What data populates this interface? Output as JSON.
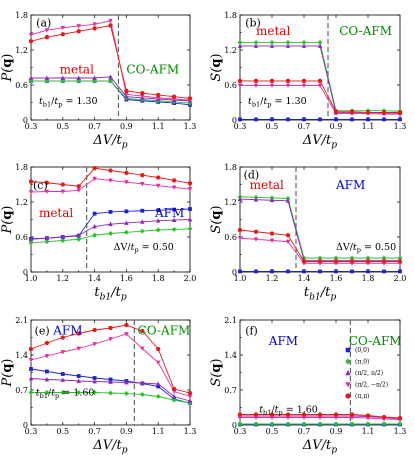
{
  "colors": {
    "q00": "#1a24d6",
    "qpi0": "#27c22a",
    "qpi2": "#8a2bb8",
    "qpi2m": "#e0309f",
    "qpipi": "#e81818",
    "metal_text": "#e00000",
    "afm_text": "#0000dd",
    "coafm_text": "#008800"
  },
  "legend": {
    "items": [
      {
        "key": "q00",
        "label": "(0,0)",
        "marker": "square"
      },
      {
        "key": "qpi0",
        "label": "(π,0)",
        "marker": "diamond"
      },
      {
        "key": "qpi2",
        "label": "(π/2, π/2)",
        "marker": "triangle-up"
      },
      {
        "key": "qpi2m",
        "label": "(π/2, −π/2)",
        "marker": "triangle-down"
      },
      {
        "key": "qpipi",
        "label": "(π,π)",
        "marker": "circle"
      }
    ]
  },
  "panels": {
    "a": {
      "tag": "(a)",
      "ylabel": "P(q)",
      "xlabel": "ΔV/tp",
      "annotation": "tb1/tp = 1.30",
      "regions": [
        {
          "text": "metal",
          "color": "metal_text"
        },
        {
          "text": "CO-AFM",
          "color": "coafm_text"
        }
      ]
    },
    "b": {
      "tag": "(b)",
      "ylabel": "S(q)",
      "xlabel": "ΔV/tp",
      "annotation": "tb1/tp = 1.30",
      "regions": [
        {
          "text": "metal",
          "color": "metal_text"
        },
        {
          "text": "CO-AFM",
          "color": "coafm_text"
        }
      ]
    },
    "c": {
      "tag": "(c)",
      "ylabel": "P(q)",
      "xlabel": "tb1/tp",
      "annotation": "ΔV/tp = 0.50",
      "regions": [
        {
          "text": "metal",
          "color": "metal_text"
        },
        {
          "text": "AFM",
          "color": "afm_text"
        }
      ]
    },
    "d": {
      "tag": "(d)",
      "ylabel": "S(q)",
      "xlabel": "tb1/tp",
      "annotation": "ΔV/tp = 0.50",
      "regions": [
        {
          "text": "metal",
          "color": "metal_text"
        },
        {
          "text": "AFM",
          "color": "afm_text"
        }
      ]
    },
    "e": {
      "tag": "(e)",
      "ylabel": "P(q)",
      "xlabel": "ΔV/tp",
      "annotation": "tb1/tp = 1.60",
      "regions": [
        {
          "text": "AFM",
          "color": "afm_text"
        },
        {
          "text": "CO-AFM",
          "color": "coafm_text"
        }
      ]
    },
    "f": {
      "tag": "(f)",
      "ylabel": "S(q)",
      "xlabel": "ΔV/tp",
      "annotation": "tb1/tp = 1.60",
      "regions": [
        {
          "text": "AFM",
          "color": "afm_text"
        },
        {
          "text": "CO-AFM",
          "color": "coafm_text"
        }
      ]
    }
  },
  "chart_data": [
    {
      "id": "a",
      "type": "line",
      "x": [
        0.3,
        0.4,
        0.5,
        0.6,
        0.7,
        0.8,
        0.9,
        1.0,
        1.1,
        1.2,
        1.3
      ],
      "xlim": [
        0.3,
        1.3
      ],
      "ylim": [
        0,
        1.8
      ],
      "xticks": [
        0.3,
        0.5,
        0.7,
        0.9,
        1.1,
        1.3
      ],
      "yticks": [
        0,
        0.6,
        1.2,
        1.8
      ],
      "vline": 0.85,
      "series": [
        {
          "key": "q00",
          "values": [
            0.67,
            0.67,
            0.67,
            0.67,
            0.67,
            0.67,
            0.35,
            0.33,
            0.31,
            0.29,
            0.26
          ]
        },
        {
          "key": "qpi0",
          "values": [
            0.67,
            0.67,
            0.67,
            0.67,
            0.67,
            0.67,
            0.37,
            0.35,
            0.33,
            0.31,
            0.29
          ]
        },
        {
          "key": "qpi2",
          "values": [
            0.72,
            0.72,
            0.72,
            0.72,
            0.72,
            0.74,
            0.4,
            0.38,
            0.36,
            0.34,
            0.33
          ]
        },
        {
          "key": "qpi2m",
          "values": [
            1.46,
            1.54,
            1.58,
            1.61,
            1.64,
            1.7,
            0.44,
            0.41,
            0.38,
            0.36,
            0.34
          ]
        },
        {
          "key": "qpipi",
          "values": [
            1.35,
            1.42,
            1.47,
            1.52,
            1.57,
            1.62,
            0.5,
            0.46,
            0.43,
            0.4,
            0.37
          ]
        }
      ]
    },
    {
      "id": "b",
      "type": "line",
      "x": [
        0.3,
        0.4,
        0.5,
        0.6,
        0.7,
        0.8,
        0.9,
        1.0,
        1.1,
        1.2,
        1.3
      ],
      "xlim": [
        0.3,
        1.3
      ],
      "ylim": [
        0,
        1.8
      ],
      "xticks": [
        0.3,
        0.5,
        0.7,
        0.9,
        1.1,
        1.3
      ],
      "yticks": [
        0,
        0.6,
        1.2,
        1.8
      ],
      "vline": 0.85,
      "series": [
        {
          "key": "q00",
          "values": [
            0.01,
            0.01,
            0.01,
            0.01,
            0.01,
            0.01,
            0.01,
            0.01,
            0.01,
            0.01,
            0.01
          ]
        },
        {
          "key": "qpi0",
          "values": [
            1.33,
            1.33,
            1.33,
            1.33,
            1.33,
            1.33,
            0.16,
            0.16,
            0.16,
            0.16,
            0.15
          ]
        },
        {
          "key": "qpi2",
          "values": [
            1.27,
            1.27,
            1.27,
            1.27,
            1.27,
            1.27,
            0.13,
            0.13,
            0.13,
            0.12,
            0.12
          ]
        },
        {
          "key": "qpi2m",
          "values": [
            0.59,
            0.59,
            0.59,
            0.59,
            0.59,
            0.59,
            0.11,
            0.11,
            0.11,
            0.1,
            0.1
          ]
        },
        {
          "key": "qpipi",
          "values": [
            0.67,
            0.67,
            0.67,
            0.67,
            0.67,
            0.67,
            0.14,
            0.14,
            0.13,
            0.13,
            0.13
          ]
        }
      ]
    },
    {
      "id": "c",
      "type": "line",
      "x": [
        1.0,
        1.1,
        1.2,
        1.3,
        1.4,
        1.5,
        1.6,
        1.7,
        1.8,
        1.9,
        2.0
      ],
      "xlim": [
        1.0,
        2.0
      ],
      "ylim": [
        0,
        1.8
      ],
      "xticks": [
        1.0,
        1.2,
        1.4,
        1.6,
        1.8,
        2.0
      ],
      "yticks": [
        0,
        0.6,
        1.2,
        1.8
      ],
      "vline": 1.35,
      "series": [
        {
          "key": "q00",
          "values": [
            0.57,
            0.58,
            0.6,
            0.62,
            1.0,
            1.03,
            1.04,
            1.05,
            1.06,
            1.07,
            1.08
          ]
        },
        {
          "key": "qpi0",
          "values": [
            0.5,
            0.52,
            0.54,
            0.56,
            0.63,
            0.66,
            0.68,
            0.7,
            0.72,
            0.73,
            0.74
          ]
        },
        {
          "key": "qpi2",
          "values": [
            0.56,
            0.58,
            0.6,
            0.63,
            0.78,
            0.82,
            0.84,
            0.86,
            0.88,
            0.89,
            0.9
          ]
        },
        {
          "key": "qpi2m",
          "values": [
            1.37,
            1.38,
            1.38,
            1.4,
            1.6,
            1.57,
            1.54,
            1.51,
            1.48,
            1.45,
            1.42
          ]
        },
        {
          "key": "qpipi",
          "values": [
            1.55,
            1.53,
            1.5,
            1.47,
            1.78,
            1.74,
            1.7,
            1.66,
            1.62,
            1.57,
            1.52
          ]
        }
      ]
    },
    {
      "id": "d",
      "type": "line",
      "x": [
        1.0,
        1.1,
        1.2,
        1.3,
        1.4,
        1.5,
        1.6,
        1.7,
        1.8,
        1.9,
        2.0
      ],
      "xlim": [
        1.0,
        2.0
      ],
      "ylim": [
        0,
        1.8
      ],
      "xticks": [
        1.0,
        1.2,
        1.4,
        1.6,
        1.8,
        2.0
      ],
      "yticks": [
        0,
        0.6,
        1.2,
        1.8
      ],
      "vline": 1.35,
      "series": [
        {
          "key": "q00",
          "values": [
            0.01,
            0.01,
            0.01,
            0.01,
            0.01,
            0.01,
            0.01,
            0.01,
            0.01,
            0.01,
            0.01
          ]
        },
        {
          "key": "qpi0",
          "values": [
            1.29,
            1.28,
            1.27,
            1.26,
            0.24,
            0.24,
            0.24,
            0.24,
            0.24,
            0.24,
            0.24
          ]
        },
        {
          "key": "qpi2",
          "values": [
            1.25,
            1.24,
            1.23,
            1.22,
            0.2,
            0.2,
            0.2,
            0.2,
            0.2,
            0.2,
            0.2
          ]
        },
        {
          "key": "qpi2m",
          "values": [
            0.58,
            0.56,
            0.54,
            0.52,
            0.15,
            0.15,
            0.15,
            0.15,
            0.15,
            0.15,
            0.15
          ]
        },
        {
          "key": "qpipi",
          "values": [
            0.72,
            0.69,
            0.66,
            0.63,
            0.18,
            0.18,
            0.18,
            0.18,
            0.18,
            0.18,
            0.18
          ]
        }
      ]
    },
    {
      "id": "e",
      "type": "line",
      "x": [
        0.3,
        0.4,
        0.5,
        0.6,
        0.7,
        0.8,
        0.9,
        1.0,
        1.1,
        1.2,
        1.3
      ],
      "xlim": [
        0.3,
        1.3
      ],
      "ylim": [
        0,
        2.1
      ],
      "xticks": [
        0.3,
        0.5,
        0.7,
        0.9,
        1.1,
        1.3
      ],
      "yticks": [
        0,
        0.7,
        1.4,
        2.1
      ],
      "vline": 0.95,
      "series": [
        {
          "key": "q00",
          "values": [
            1.12,
            1.07,
            1.02,
            0.98,
            0.94,
            0.91,
            0.88,
            0.83,
            0.77,
            0.52,
            0.44
          ]
        },
        {
          "key": "qpi0",
          "values": [
            0.65,
            0.65,
            0.65,
            0.65,
            0.65,
            0.64,
            0.63,
            0.61,
            0.57,
            0.5,
            0.44
          ]
        },
        {
          "key": "qpi2",
          "values": [
            0.93,
            0.91,
            0.9,
            0.88,
            0.87,
            0.86,
            0.85,
            0.84,
            0.82,
            0.57,
            0.48
          ]
        },
        {
          "key": "qpi2m",
          "values": [
            1.3,
            1.38,
            1.46,
            1.53,
            1.62,
            1.72,
            1.82,
            1.53,
            1.25,
            0.67,
            0.57
          ]
        },
        {
          "key": "qpipi",
          "values": [
            1.52,
            1.64,
            1.75,
            1.83,
            1.9,
            1.94,
            2.0,
            1.88,
            1.52,
            0.72,
            0.64
          ]
        }
      ]
    },
    {
      "id": "f",
      "type": "line",
      "x": [
        0.3,
        0.4,
        0.5,
        0.6,
        0.7,
        0.8,
        0.9,
        1.0,
        1.1,
        1.2,
        1.3
      ],
      "xlim": [
        0.3,
        1.3
      ],
      "ylim": [
        0,
        2.1
      ],
      "xticks": [
        0.3,
        0.5,
        0.7,
        0.9,
        1.1,
        1.3
      ],
      "yticks": [
        0,
        0.7,
        1.4,
        2.1
      ],
      "vline": 0.99,
      "series": [
        {
          "key": "q00",
          "values": [
            0.01,
            0.01,
            0.01,
            0.01,
            0.01,
            0.01,
            0.01,
            0.01,
            0.01,
            0.01,
            0.01
          ]
        },
        {
          "key": "qpi0",
          "values": [
            0.02,
            0.02,
            0.02,
            0.02,
            0.02,
            0.02,
            0.02,
            0.02,
            0.02,
            0.02,
            0.02
          ]
        },
        {
          "key": "qpi2",
          "values": [
            0.18,
            0.18,
            0.18,
            0.18,
            0.18,
            0.18,
            0.18,
            0.18,
            0.17,
            0.15,
            0.13
          ]
        },
        {
          "key": "qpi2m",
          "values": [
            0.15,
            0.15,
            0.15,
            0.15,
            0.15,
            0.15,
            0.15,
            0.15,
            0.14,
            0.12,
            0.11
          ]
        },
        {
          "key": "qpipi",
          "values": [
            0.21,
            0.21,
            0.21,
            0.21,
            0.21,
            0.21,
            0.21,
            0.21,
            0.19,
            0.16,
            0.14
          ]
        }
      ]
    }
  ]
}
